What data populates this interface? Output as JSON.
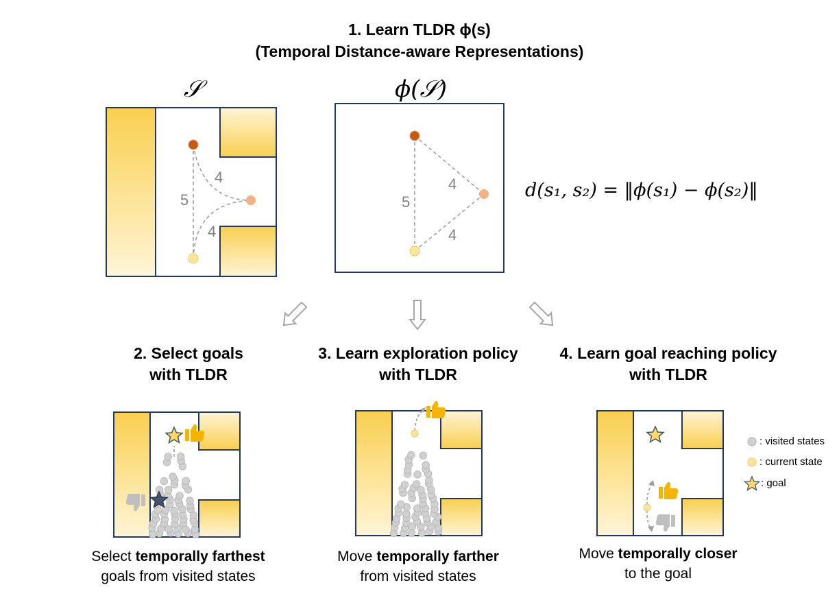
{
  "header": {
    "line1": "1.   Learn TLDR ϕ(s)",
    "line2": "(Temporal Distance-aware Representations)"
  },
  "panels": {
    "state_label": "𝒮",
    "embed_label": "ϕ(𝒮)",
    "edge_labels": {
      "top": "4",
      "vertical": "5",
      "bottom": "4"
    },
    "distance_formula": "d(s₁, s₂) = ‖ϕ(s₁) − ϕ(s₂)‖"
  },
  "stages": [
    {
      "title_line1": "2. Select goals",
      "title_line2": "with TLDR",
      "caption_pre": "Select ",
      "caption_bold": "temporally farthest",
      "caption_line2": "goals from visited states"
    },
    {
      "title_line1": "3. Learn exploration policy",
      "title_line2": "with TLDR",
      "caption_pre": "Move ",
      "caption_bold": "temporally farther",
      "caption_line2": "from visited states"
    },
    {
      "title_line1": "4. Learn goal reaching policy",
      "title_line2": "with TLDR",
      "caption_pre": "Move ",
      "caption_bold": "temporally closer",
      "caption_line2": "to the goal"
    }
  ],
  "legend": {
    "visited": ": visited states",
    "current": ": current state",
    "goal": ": goal"
  },
  "colors": {
    "wall_dark": "#f9cf4f",
    "wall_light": "#fff5d6",
    "border": "#1f3864",
    "node_top": "#c55a11",
    "node_mid": "#f4b183",
    "node_bottom": "#ffe699",
    "visited": "#d0d0d0",
    "thumb_up": "#f5b400",
    "thumb_down": "#bfbfbf",
    "star_light": "#ffd966",
    "star_dark": "#44546a"
  }
}
